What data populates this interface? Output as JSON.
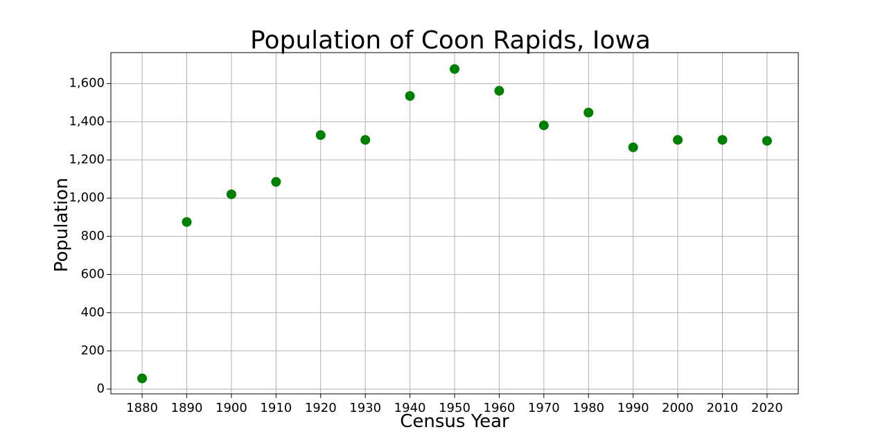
{
  "chart_data": {
    "type": "scatter",
    "title": "Population of Coon Rapids, Iowa",
    "xlabel": "Census Year",
    "ylabel": "Population",
    "x": [
      1880,
      1890,
      1900,
      1910,
      1920,
      1930,
      1940,
      1950,
      1960,
      1970,
      1980,
      1990,
      2000,
      2010,
      2020
    ],
    "y": [
      56,
      875,
      1020,
      1085,
      1330,
      1305,
      1535,
      1676,
      1562,
      1381,
      1448,
      1266,
      1305,
      1305,
      1300
    ],
    "x_ticks": [
      1880,
      1890,
      1900,
      1910,
      1920,
      1930,
      1940,
      1950,
      1960,
      1970,
      1980,
      1990,
      2000,
      2010,
      2020
    ],
    "y_ticks": [
      0,
      200,
      400,
      600,
      800,
      1000,
      1200,
      1400,
      1600
    ],
    "y_tick_labels": [
      "0",
      "200",
      "400",
      "600",
      "800",
      "1,000",
      "1,200",
      "1,400",
      "1,600"
    ],
    "xlim": [
      1873,
      2027
    ],
    "ylim": [
      -25,
      1762
    ],
    "grid": true,
    "marker_color": "#008000"
  }
}
